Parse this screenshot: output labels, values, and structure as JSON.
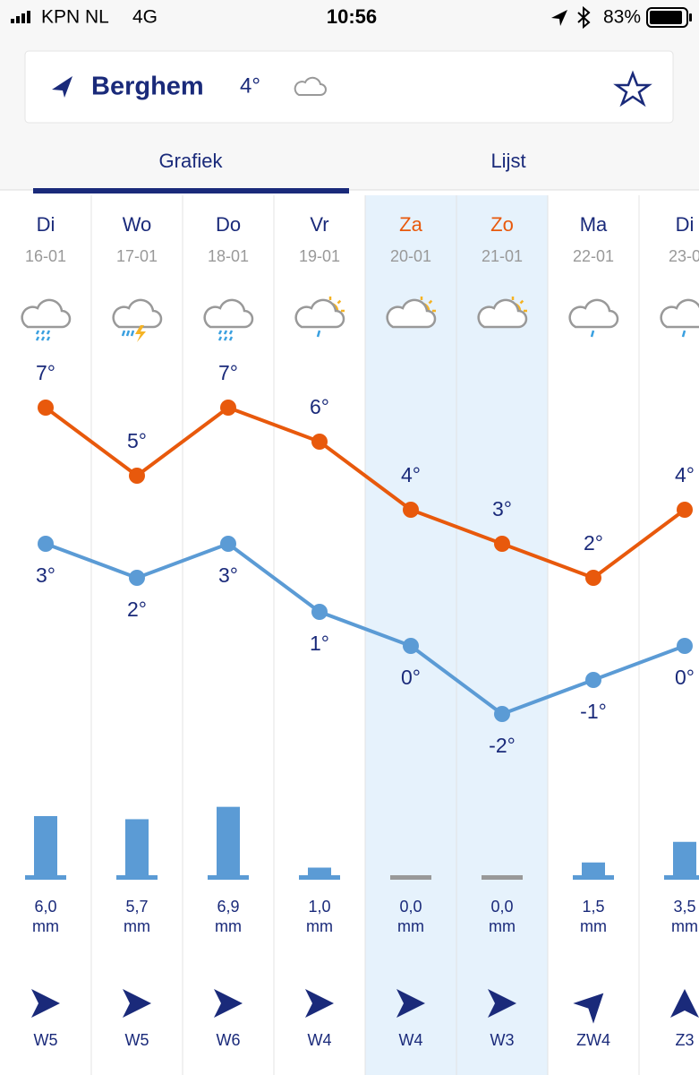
{
  "status_bar": {
    "carrier": "KPN NL",
    "network": "4G",
    "time": "10:56",
    "battery": "83%"
  },
  "location": {
    "name": "Berghem",
    "temperature": "4°"
  },
  "tabs": [
    "Grafiek",
    "Lijst"
  ],
  "days": [
    {
      "day": "Di",
      "date": "16-01",
      "high": {
        "value": 7,
        "label": "7°"
      },
      "low": {
        "value": 3,
        "label": "3°"
      },
      "rain": {
        "value": 6.0,
        "label": "6,0"
      },
      "rain_unit": "mm",
      "wind": "W5"
    },
    {
      "day": "Wo",
      "date": "17-01",
      "high": {
        "value": 5,
        "label": "5°"
      },
      "low": {
        "value": 2,
        "label": "2°"
      },
      "rain": {
        "value": 5.7,
        "label": "5,7"
      },
      "rain_unit": "mm",
      "wind": "W5"
    },
    {
      "day": "Do",
      "date": "18-01",
      "high": {
        "value": 7,
        "label": "7°"
      },
      "low": {
        "value": 3,
        "label": "3°"
      },
      "rain": {
        "value": 6.9,
        "label": "6,9"
      },
      "rain_unit": "mm",
      "wind": "W6"
    },
    {
      "day": "Vr",
      "date": "19-01",
      "high": {
        "value": 6,
        "label": "6°"
      },
      "low": {
        "value": 1,
        "label": "1°"
      },
      "rain": {
        "value": 1.0,
        "label": "1,0"
      },
      "rain_unit": "mm",
      "wind": "W4"
    },
    {
      "day": "Za",
      "date": "20-01",
      "high": {
        "value": 4,
        "label": "4°"
      },
      "low": {
        "value": 0,
        "label": "0°"
      },
      "rain": {
        "value": 0.0,
        "label": "0,0"
      },
      "rain_unit": "mm",
      "wind": "W4"
    },
    {
      "day": "Zo",
      "date": "21-01",
      "high": {
        "value": 3,
        "label": "3°"
      },
      "low": {
        "value": -2,
        "label": "-2°"
      },
      "rain": {
        "value": 0.0,
        "label": "0,0"
      },
      "rain_unit": "mm",
      "wind": "W3"
    },
    {
      "day": "Ma",
      "date": "22-01",
      "high": {
        "value": 2,
        "label": "2°"
      },
      "low": {
        "value": -1,
        "label": "-1°"
      },
      "rain": {
        "value": 1.5,
        "label": "1,5"
      },
      "rain_unit": "mm",
      "wind": "ZW4"
    },
    {
      "day": "Di",
      "date": "23-0",
      "high": {
        "value": 4,
        "label": "4°"
      },
      "low": {
        "value": 0,
        "label": "0°"
      },
      "rain": {
        "value": 3.5,
        "label": "3,5"
      },
      "rain_unit": "mm",
      "wind": "Z3"
    }
  ]
}
